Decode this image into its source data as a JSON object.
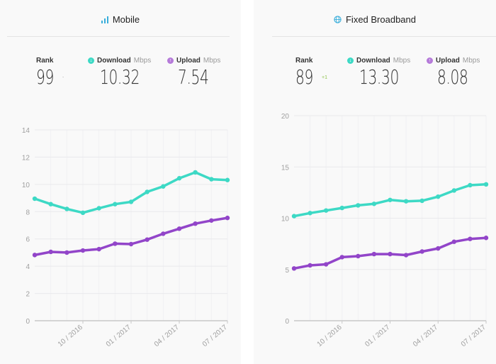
{
  "colors": {
    "download": "#3dd9c5",
    "upload": "#9245c9",
    "grid": "#e9e9ec",
    "axis": "#c8c8c8",
    "positive_change": "#8cc24a",
    "title_icon": "#3aaedb"
  },
  "panels": [
    {
      "title": "Mobile",
      "title_icon": "signal-bars-icon",
      "rank_label": "Rank",
      "rank_value": "99",
      "rank_change": "-",
      "download_label": "Download",
      "download_unit": "Mbps",
      "download_value": "10.32",
      "upload_label": "Upload",
      "upload_unit": "Mbps",
      "upload_value": "7.54"
    },
    {
      "title": "Fixed Broadband",
      "title_icon": "globe-icon",
      "rank_label": "Rank",
      "rank_value": "89",
      "rank_change": "+1",
      "download_label": "Download",
      "download_unit": "Mbps",
      "download_value": "13.30",
      "upload_label": "Upload",
      "upload_unit": "Mbps",
      "upload_value": "8.08"
    }
  ],
  "chart_data": [
    {
      "type": "line",
      "title": "Mobile",
      "xlabel": "",
      "ylabel": "",
      "ylim": [
        0,
        14
      ],
      "yticks": [
        0,
        2,
        4,
        6,
        8,
        10,
        12,
        14
      ],
      "x": [
        "07/2016",
        "08/2016",
        "09/2016",
        "10/2016",
        "11/2016",
        "12/2016",
        "01/2017",
        "02/2017",
        "03/2017",
        "04/2017",
        "05/2017",
        "06/2017",
        "07/2017"
      ],
      "xtick_labels": [
        {
          "index": 3,
          "label": "10 / 2016"
        },
        {
          "index": 6,
          "label": "01 / 2017"
        },
        {
          "index": 9,
          "label": "04 / 2017"
        },
        {
          "index": 12,
          "label": "07 / 2017"
        }
      ],
      "grid": true,
      "series": [
        {
          "name": "Download",
          "values": [
            8.95,
            8.55,
            8.2,
            7.92,
            8.25,
            8.55,
            8.72,
            9.45,
            9.85,
            10.45,
            10.88,
            10.38,
            10.32
          ]
        },
        {
          "name": "Upload",
          "values": [
            4.82,
            5.05,
            5.0,
            5.15,
            5.25,
            5.65,
            5.62,
            5.95,
            6.38,
            6.75,
            7.12,
            7.35,
            7.54
          ]
        }
      ]
    },
    {
      "type": "line",
      "title": "Fixed Broadband",
      "xlabel": "",
      "ylabel": "",
      "ylim": [
        0,
        20
      ],
      "yticks": [
        0,
        5,
        10,
        15,
        20
      ],
      "x": [
        "07/2016",
        "08/2016",
        "09/2016",
        "10/2016",
        "11/2016",
        "12/2016",
        "01/2017",
        "02/2017",
        "03/2017",
        "04/2017",
        "05/2017",
        "06/2017",
        "07/2017"
      ],
      "xtick_labels": [
        {
          "index": 3,
          "label": "10 / 2016"
        },
        {
          "index": 6,
          "label": "01 / 2017"
        },
        {
          "index": 9,
          "label": "04 / 2017"
        },
        {
          "index": 12,
          "label": "07 / 2017"
        }
      ],
      "grid": true,
      "series": [
        {
          "name": "Download",
          "values": [
            10.2,
            10.5,
            10.75,
            11.0,
            11.25,
            11.4,
            11.78,
            11.65,
            11.7,
            12.1,
            12.7,
            13.22,
            13.3
          ]
        },
        {
          "name": "Upload",
          "values": [
            5.1,
            5.4,
            5.5,
            6.2,
            6.3,
            6.5,
            6.5,
            6.4,
            6.75,
            7.05,
            7.7,
            7.98,
            8.08
          ]
        }
      ]
    }
  ]
}
